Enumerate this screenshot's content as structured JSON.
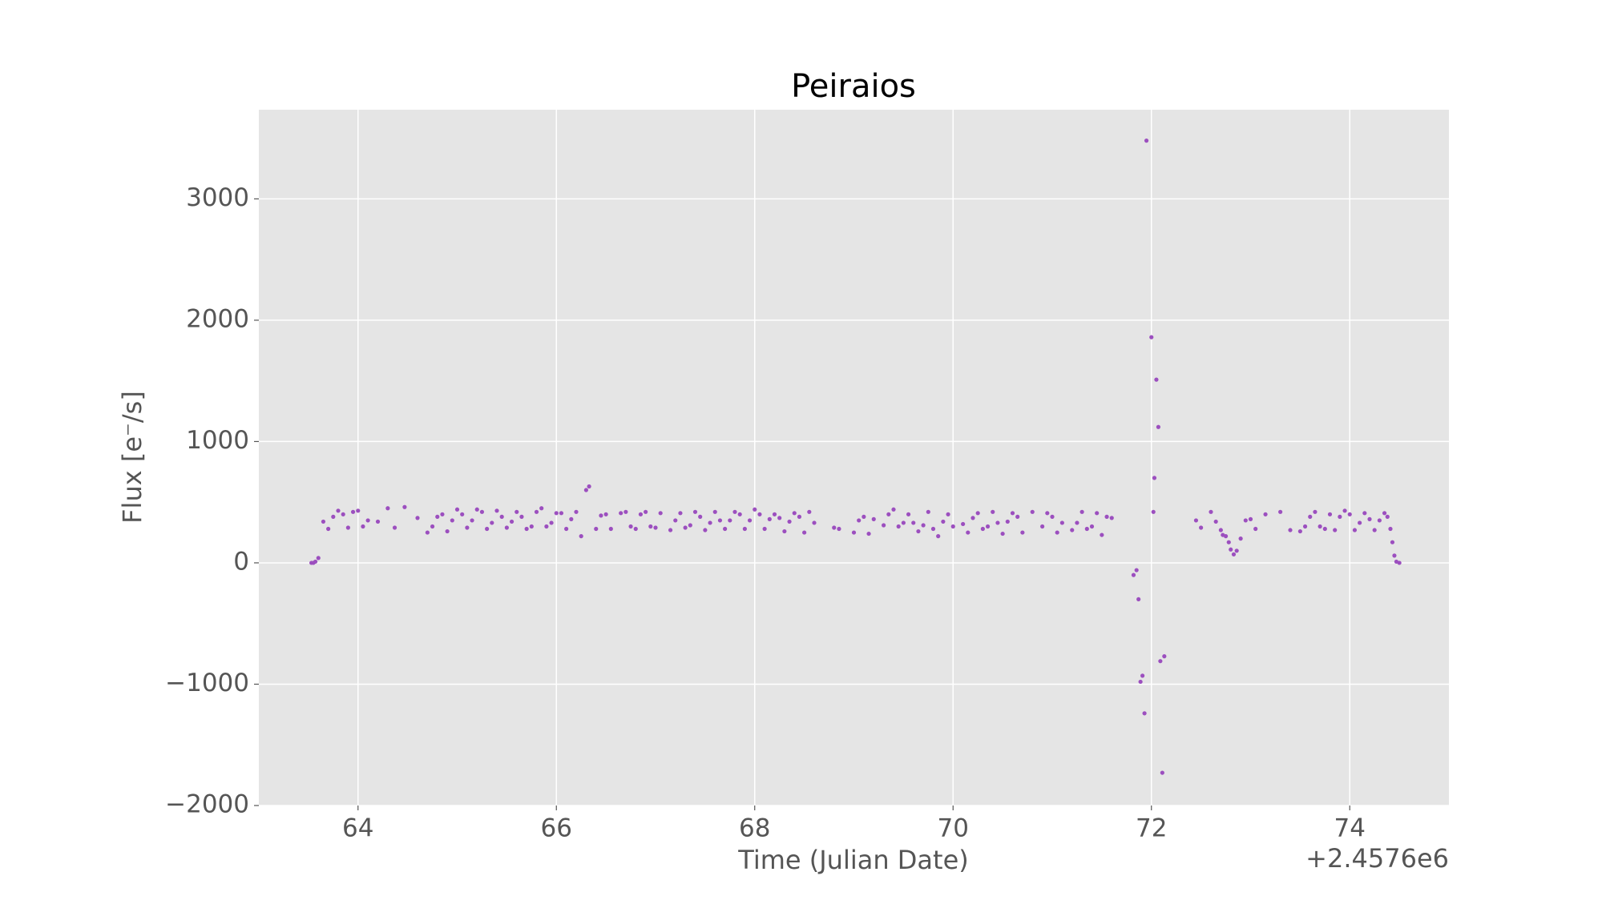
{
  "chart_data": {
    "type": "scatter",
    "title": "Peiraios",
    "xlabel": "Time (Julian Date)",
    "ylabel": "Flux [e⁻/s]",
    "x_offset_text": "+2.4576e6",
    "xlim": [
      63,
      75
    ],
    "ylim": [
      -2000,
      3735
    ],
    "xticks": [
      64,
      66,
      68,
      70,
      72,
      74
    ],
    "yticks": [
      {
        "value": -2000,
        "label": "−2000"
      },
      {
        "value": -1000,
        "label": "−1000"
      },
      0,
      1000,
      2000,
      3000
    ],
    "grid": true,
    "series": [
      {
        "color": "#9c4fbf",
        "x": [
          63.53,
          63.55,
          63.57,
          63.6,
          63.65,
          63.7,
          63.75,
          63.8,
          63.85,
          63.9,
          63.95,
          64.0,
          64.05,
          64.1,
          64.2,
          64.3,
          64.37,
          64.47,
          64.6,
          64.7,
          64.75,
          64.8,
          64.85,
          64.9,
          64.95,
          65.0,
          65.05,
          65.1,
          65.15,
          65.2,
          65.25,
          65.3,
          65.35,
          65.4,
          65.45,
          65.5,
          65.55,
          65.6,
          65.65,
          65.7,
          65.75,
          65.8,
          65.85,
          65.9,
          65.95,
          66.0,
          66.05,
          66.1,
          66.15,
          66.2,
          66.25,
          66.3,
          66.33,
          66.4,
          66.45,
          66.5,
          66.55,
          66.65,
          66.7,
          66.75,
          66.8,
          66.85,
          66.9,
          66.95,
          67.0,
          67.05,
          67.15,
          67.2,
          67.25,
          67.3,
          67.35,
          67.4,
          67.45,
          67.5,
          67.55,
          67.6,
          67.65,
          67.7,
          67.75,
          67.8,
          67.85,
          67.9,
          67.95,
          68.0,
          68.05,
          68.1,
          68.15,
          68.2,
          68.25,
          68.3,
          68.35,
          68.4,
          68.45,
          68.5,
          68.55,
          68.6,
          68.8,
          68.85,
          69.0,
          69.05,
          69.1,
          69.15,
          69.2,
          69.3,
          69.35,
          69.4,
          69.45,
          69.5,
          69.55,
          69.6,
          69.65,
          69.7,
          69.75,
          69.8,
          69.85,
          69.9,
          69.95,
          70.0,
          70.1,
          70.15,
          70.2,
          70.25,
          70.3,
          70.35,
          70.4,
          70.45,
          70.5,
          70.55,
          70.6,
          70.65,
          70.7,
          70.8,
          70.9,
          70.95,
          71.0,
          71.05,
          71.1,
          71.2,
          71.25,
          71.3,
          71.35,
          71.4,
          71.45,
          71.5,
          71.55,
          71.6,
          71.82,
          71.85,
          71.87,
          71.89,
          71.91,
          71.93,
          71.95,
          72.0,
          72.02,
          72.03,
          72.05,
          72.07,
          72.09,
          72.11,
          72.13,
          72.45,
          72.5,
          72.6,
          72.65,
          72.7,
          72.72,
          72.75,
          72.78,
          72.8,
          72.83,
          72.86,
          72.9,
          72.95,
          73.0,
          73.05,
          73.15,
          73.3,
          73.4,
          73.5,
          73.55,
          73.6,
          73.65,
          73.7,
          73.75,
          73.8,
          73.85,
          73.9,
          73.95,
          74.0,
          74.05,
          74.1,
          74.15,
          74.2,
          74.25,
          74.3,
          74.35,
          74.38,
          74.41,
          74.43,
          74.45,
          74.47,
          74.5
        ],
        "values": [
          0,
          0,
          10,
          40,
          340,
          280,
          380,
          430,
          400,
          290,
          420,
          430,
          300,
          350,
          340,
          450,
          290,
          460,
          370,
          250,
          300,
          380,
          400,
          260,
          350,
          440,
          400,
          290,
          350,
          440,
          420,
          280,
          330,
          430,
          380,
          290,
          340,
          420,
          380,
          280,
          300,
          420,
          450,
          300,
          330,
          410,
          410,
          280,
          360,
          420,
          220,
          600,
          630,
          280,
          390,
          400,
          280,
          410,
          420,
          300,
          280,
          400,
          420,
          300,
          290,
          410,
          270,
          350,
          410,
          290,
          310,
          420,
          380,
          270,
          330,
          420,
          350,
          280,
          350,
          420,
          400,
          280,
          350,
          440,
          400,
          280,
          360,
          400,
          370,
          260,
          340,
          410,
          380,
          250,
          420,
          330,
          290,
          280,
          250,
          350,
          380,
          240,
          360,
          310,
          400,
          440,
          300,
          330,
          400,
          330,
          260,
          310,
          420,
          280,
          220,
          340,
          400,
          300,
          320,
          250,
          370,
          410,
          280,
          300,
          420,
          330,
          240,
          340,
          410,
          380,
          250,
          420,
          300,
          410,
          380,
          250,
          330,
          270,
          330,
          420,
          280,
          300,
          410,
          230,
          380,
          370,
          -100,
          -60,
          -300,
          -980,
          -930,
          -1240,
          3480,
          1860,
          420,
          700,
          1510,
          1120,
          -810,
          -1730,
          -770,
          350,
          290,
          420,
          340,
          270,
          230,
          220,
          170,
          110,
          70,
          100,
          200,
          350,
          360,
          280,
          400,
          420,
          270,
          260,
          300,
          380,
          420,
          300,
          280,
          400,
          270,
          380,
          430,
          400,
          270,
          330,
          410,
          360,
          270,
          350,
          410,
          380,
          280,
          170,
          60,
          10,
          0
        ]
      }
    ]
  }
}
